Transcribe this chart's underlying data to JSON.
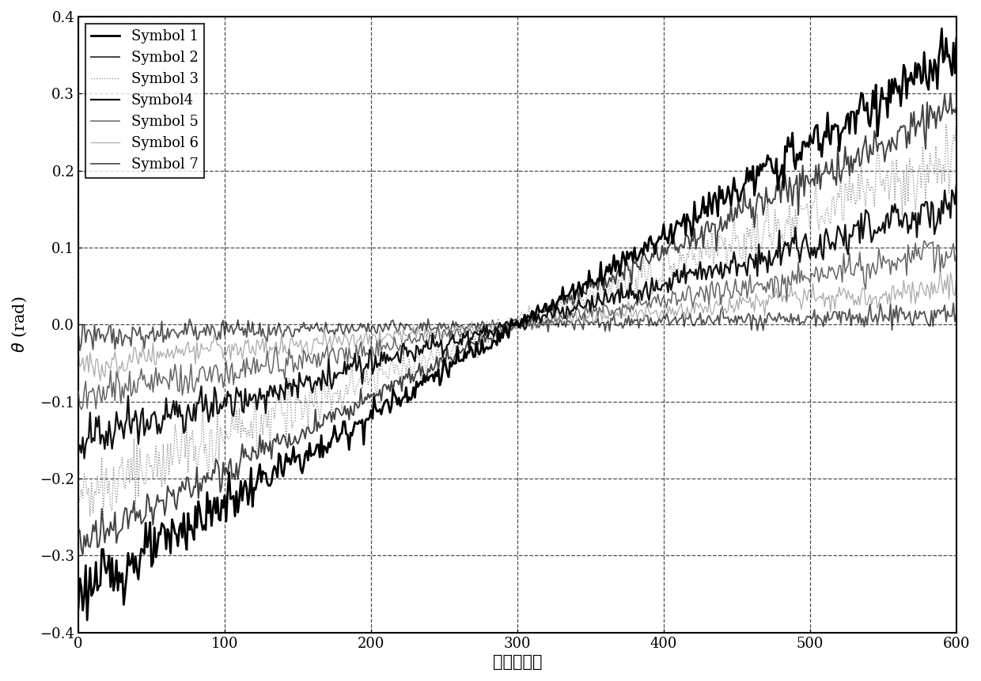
{
  "xlabel": "子载波编号",
  "ylabel": "$\\theta$ (rad)",
  "xlim": [
    0,
    600
  ],
  "ylim": [
    -0.4,
    0.4
  ],
  "xticks": [
    0,
    100,
    200,
    300,
    400,
    500,
    600
  ],
  "yticks": [
    -0.4,
    -0.3,
    -0.2,
    -0.1,
    0,
    0.1,
    0.2,
    0.3,
    0.4
  ],
  "n_points": 601,
  "labels": [
    "Symbol 1",
    "Symbol 2",
    "Symbol 3",
    "Symbol4",
    "Symbol 5",
    "Symbol 6",
    "Symbol 7"
  ],
  "amplitudes": [
    0.35,
    0.285,
    0.22,
    0.155,
    0.095,
    0.05,
    0.015
  ],
  "noise_scales": [
    0.018,
    0.015,
    0.025,
    0.015,
    0.013,
    0.011,
    0.009
  ],
  "colors": [
    "#000000",
    "#444444",
    "#888888",
    "#111111",
    "#666666",
    "#aaaaaa",
    "#555555"
  ],
  "linewidths": [
    2.0,
    1.4,
    0.9,
    1.6,
    1.1,
    0.9,
    1.3
  ],
  "linestyles": [
    "solid",
    "solid",
    "dotted",
    "solid",
    "solid",
    "solid",
    "solid"
  ],
  "zorders": [
    7,
    5,
    4,
    6,
    3,
    2,
    1
  ],
  "background_color": "#ffffff",
  "grid_color": "#000000",
  "legend_fontsize": 13,
  "axis_label_fontsize": 15,
  "tick_fontsize": 13
}
